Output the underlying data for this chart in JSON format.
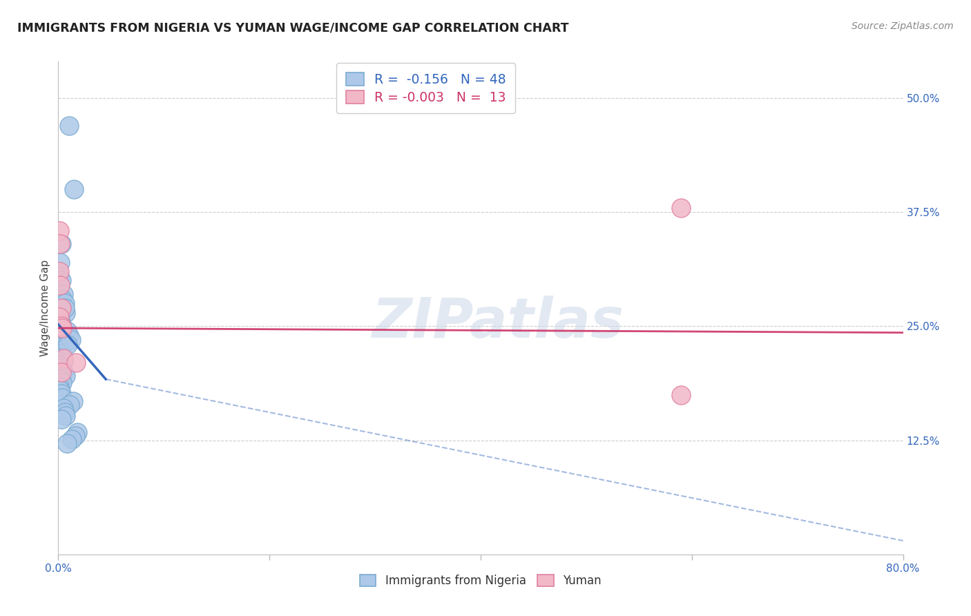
{
  "title": "IMMIGRANTS FROM NIGERIA VS YUMAN WAGE/INCOME GAP CORRELATION CHART",
  "source": "Source: ZipAtlas.com",
  "ylabel": "Wage/Income Gap",
  "ytick_labels": [
    "50.0%",
    "37.5%",
    "25.0%",
    "12.5%"
  ],
  "ytick_values": [
    0.5,
    0.375,
    0.25,
    0.125
  ],
  "xlim": [
    0.0,
    0.8
  ],
  "ylim": [
    0.0,
    0.54
  ],
  "legend_r_nigeria": "-0.156",
  "legend_n_nigeria": 48,
  "legend_r_yuman": "-0.003",
  "legend_n_yuman": 13,
  "watermark": "ZIPatlas",
  "nigeria_color": "#adc8e8",
  "yuman_color": "#f2b8c8",
  "nigeria_edge": "#7aaad0",
  "yuman_edge": "#e080a0",
  "trendline_nigeria_color": "#3366bb",
  "trendline_yuman_color": "#cc3366",
  "nigeria_x": [
    0.01,
    0.015,
    0.003,
    0.002,
    0.001,
    0.003,
    0.005,
    0.004,
    0.006,
    0.007,
    0.001,
    0.002,
    0.003,
    0.004,
    0.005,
    0.001,
    0.002,
    0.003,
    0.004,
    0.006,
    0.002,
    0.003,
    0.004,
    0.005,
    0.001,
    0.003,
    0.005,
    0.007,
    0.002,
    0.004,
    0.001,
    0.002,
    0.003,
    0.004,
    0.008,
    0.01,
    0.012,
    0.009,
    0.014,
    0.011,
    0.005,
    0.006,
    0.007,
    0.003,
    0.018,
    0.016,
    0.013,
    0.008
  ],
  "nigeria_y": [
    0.47,
    0.4,
    0.34,
    0.32,
    0.305,
    0.3,
    0.285,
    0.28,
    0.275,
    0.265,
    0.262,
    0.258,
    0.252,
    0.248,
    0.244,
    0.24,
    0.236,
    0.232,
    0.228,
    0.27,
    0.224,
    0.22,
    0.216,
    0.212,
    0.208,
    0.204,
    0.2,
    0.196,
    0.192,
    0.188,
    0.184,
    0.18,
    0.176,
    0.172,
    0.245,
    0.24,
    0.235,
    0.23,
    0.168,
    0.164,
    0.16,
    0.156,
    0.152,
    0.148,
    0.134,
    0.13,
    0.126,
    0.122
  ],
  "yuman_x": [
    0.001,
    0.002,
    0.001,
    0.002,
    0.003,
    0.001,
    0.003,
    0.004,
    0.005,
    0.003,
    0.59,
    0.017,
    0.59
  ],
  "yuman_y": [
    0.355,
    0.34,
    0.31,
    0.295,
    0.27,
    0.26,
    0.25,
    0.248,
    0.215,
    0.2,
    0.38,
    0.21,
    0.175
  ],
  "trendline_nig_x0": 0.0,
  "trendline_nig_y0": 0.252,
  "trendline_nig_x1": 0.045,
  "trendline_nig_y1": 0.192,
  "trendline_nig_dash_x1": 0.8,
  "trendline_nig_dash_y1": 0.015,
  "trendline_yum_x0": 0.0,
  "trendline_yum_y0": 0.248,
  "trendline_yum_x1": 0.8,
  "trendline_yum_y1": 0.243,
  "background_color": "#ffffff",
  "grid_color": "#cccccc",
  "title_color": "#222222",
  "source_color": "#888888",
  "axis_tick_color": "#3366bb",
  "ytick_color": "#3366bb"
}
